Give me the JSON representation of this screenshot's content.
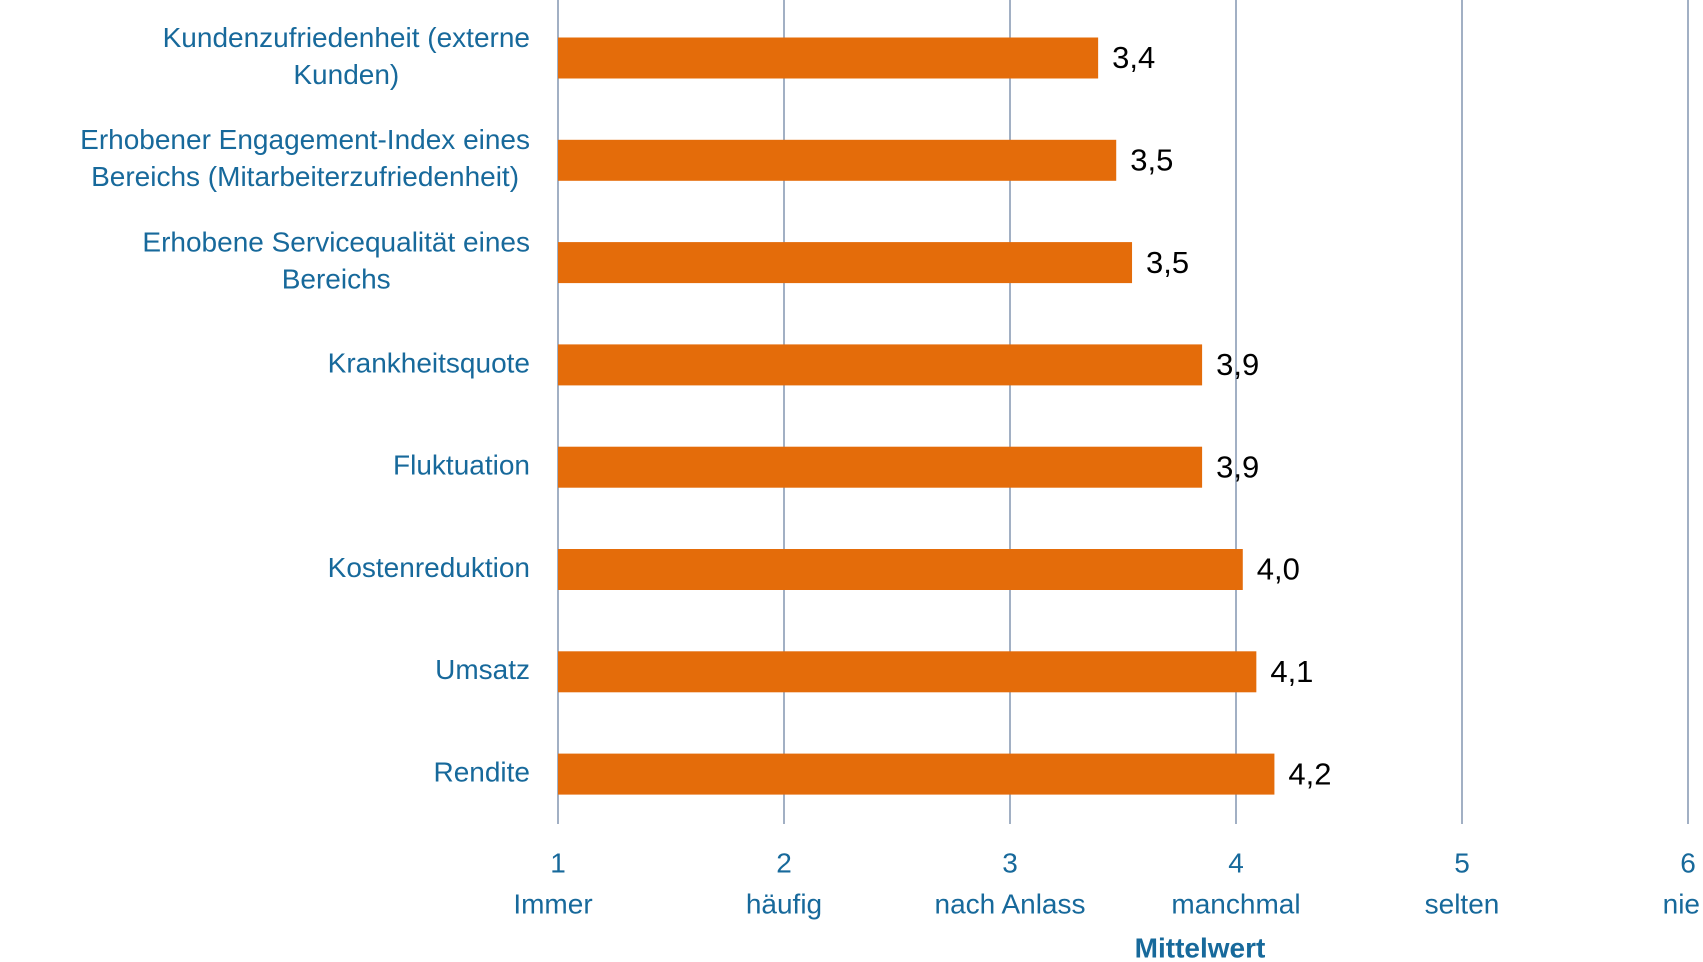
{
  "chart_data": {
    "type": "barh",
    "categories": [
      [
        "Kundenzufriedenheit (externe",
        "Kunden)"
      ],
      [
        "Erhobener Engagement-Index eines",
        "Bereichs (Mitarbeiterzufriedenheit)"
      ],
      [
        "Erhobene Servicequalität eines",
        "Bereichs"
      ],
      [
        "Krankheitsquote"
      ],
      [
        "Fluktuation"
      ],
      [
        "Kostenreduktion"
      ],
      [
        "Umsatz"
      ],
      [
        "Rendite"
      ]
    ],
    "values": [
      3.39,
      3.47,
      3.54,
      3.85,
      3.85,
      4.03,
      4.09,
      4.17
    ],
    "value_labels": [
      "3,4",
      "3,5",
      "3,5",
      "3,9",
      "3,9",
      "4,0",
      "4,1",
      "4,2"
    ],
    "color": "#e46c0a",
    "xlim": [
      1,
      6
    ],
    "xticks": [
      1,
      2,
      3,
      4,
      5,
      6
    ],
    "xtick_sublabels": [
      "Immer",
      "häufig",
      "nach Anlass",
      "manchmal",
      "selten",
      "nie"
    ],
    "xlabel": "Mittelwert",
    "grid": true
  }
}
